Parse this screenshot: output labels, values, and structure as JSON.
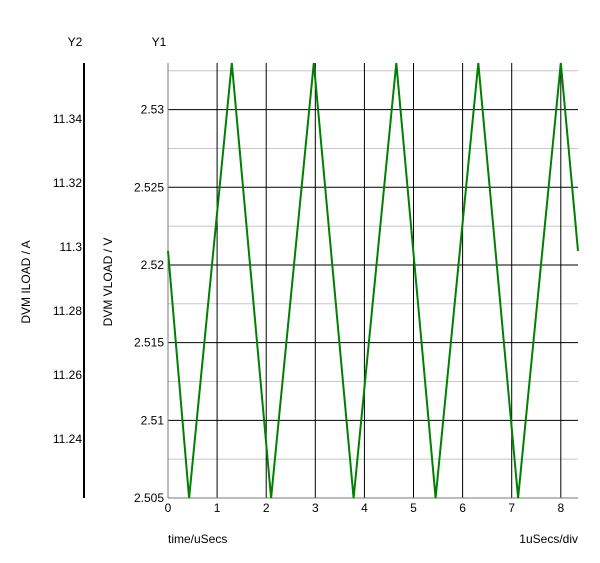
{
  "chart_data": {
    "type": "line",
    "x_axis": {
      "label": "time/uSecs",
      "scale_label": "1uSecs/div",
      "range": [
        0,
        8.35
      ],
      "ticks": [
        0,
        1,
        2,
        3,
        4,
        5,
        6,
        7,
        8
      ],
      "tick_labels": [
        "0",
        "1",
        "2",
        "3",
        "4",
        "5",
        "6",
        "7",
        "8"
      ]
    },
    "y1_axis": {
      "heading": "Y1",
      "label": "DVM VLOAD / V",
      "range": [
        2.505,
        2.533
      ],
      "ticks": [
        2.505,
        2.51,
        2.515,
        2.52,
        2.525,
        2.53
      ],
      "tick_labels": [
        "2.505",
        "2.51",
        "2.515",
        "2.52",
        "2.525",
        "2.53"
      ]
    },
    "y2_axis": {
      "heading": "Y2",
      "label": "DVM ILOAD / A",
      "range": [
        11.2215,
        11.3575
      ],
      "ticks": [
        11.24,
        11.26,
        11.28,
        11.3,
        11.32,
        11.34
      ],
      "tick_labels": [
        "11.24",
        "11.26",
        "11.28",
        "11.3",
        "11.32",
        "11.34"
      ]
    },
    "grid": true,
    "series": [
      {
        "axis": "y1",
        "color": "#008000",
        "x": [
          0,
          0.43,
          1.3,
          2.1,
          2.97,
          3.78,
          4.65,
          5.45,
          6.32,
          7.13,
          8.0,
          8.35
        ],
        "y": [
          2.5209,
          2.505,
          2.533,
          2.505,
          2.533,
          2.505,
          2.533,
          2.505,
          2.533,
          2.505,
          2.533,
          2.5209
        ]
      }
    ]
  }
}
